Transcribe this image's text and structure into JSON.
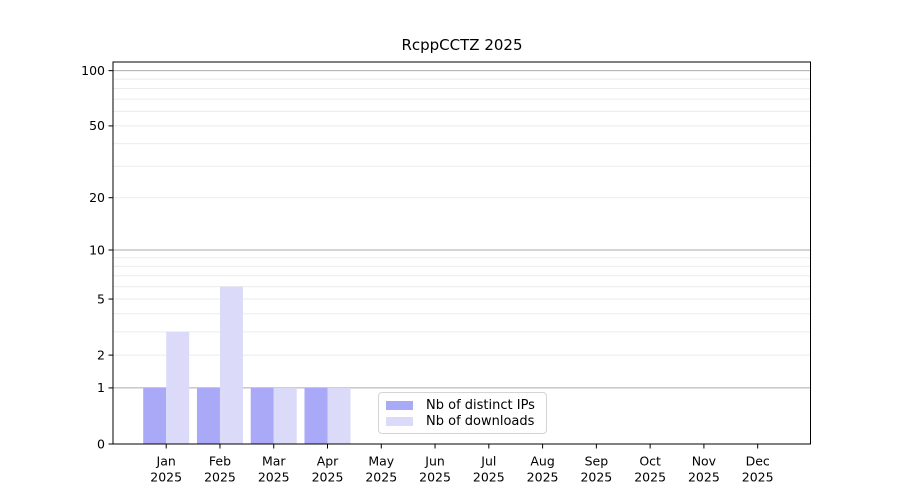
{
  "figure": {
    "background": "#ffffff",
    "title": "RcppCCTZ 2025"
  },
  "colors": {
    "distinct_ips_bar": "#a9a9f7",
    "downloads_bar": "#dbdbf9",
    "axis": "#000000",
    "text": "#000000",
    "grid_major": "#ababab",
    "grid_minor": "#ebebeb",
    "legend_border": "#d4d4d4"
  },
  "chart_data": {
    "type": "bar",
    "title": "RcppCCTZ 2025",
    "categories": [
      "Jan",
      "Feb",
      "Mar",
      "Apr",
      "May",
      "Jun",
      "Jul",
      "Aug",
      "Sep",
      "Oct",
      "Nov",
      "Dec"
    ],
    "x_year": "2025",
    "series": [
      {
        "name": "Nb of distinct IPs",
        "color": "#a9a9f7",
        "values": [
          1,
          1,
          1,
          1,
          0,
          0,
          0,
          0,
          0,
          0,
          0,
          0
        ]
      },
      {
        "name": "Nb of downloads",
        "color": "#dbdbf9",
        "values": [
          3,
          6,
          1,
          1,
          0,
          0,
          0,
          0,
          0,
          0,
          0,
          0
        ]
      }
    ],
    "y_axis": {
      "scale": "log1p",
      "tick_values": [
        0,
        1,
        2,
        5,
        10,
        20,
        50,
        100
      ],
      "major_gridlines": [
        1,
        10,
        100
      ],
      "minor_gridlines": [
        2,
        3,
        4,
        5,
        6,
        7,
        8,
        9,
        20,
        30,
        40,
        50,
        60,
        70,
        80,
        90
      ],
      "min": 0,
      "max": 112
    },
    "legend": {
      "position": "bottom-center",
      "entries": [
        "Nb of distinct IPs",
        "Nb of downloads"
      ]
    },
    "grid": "on"
  }
}
